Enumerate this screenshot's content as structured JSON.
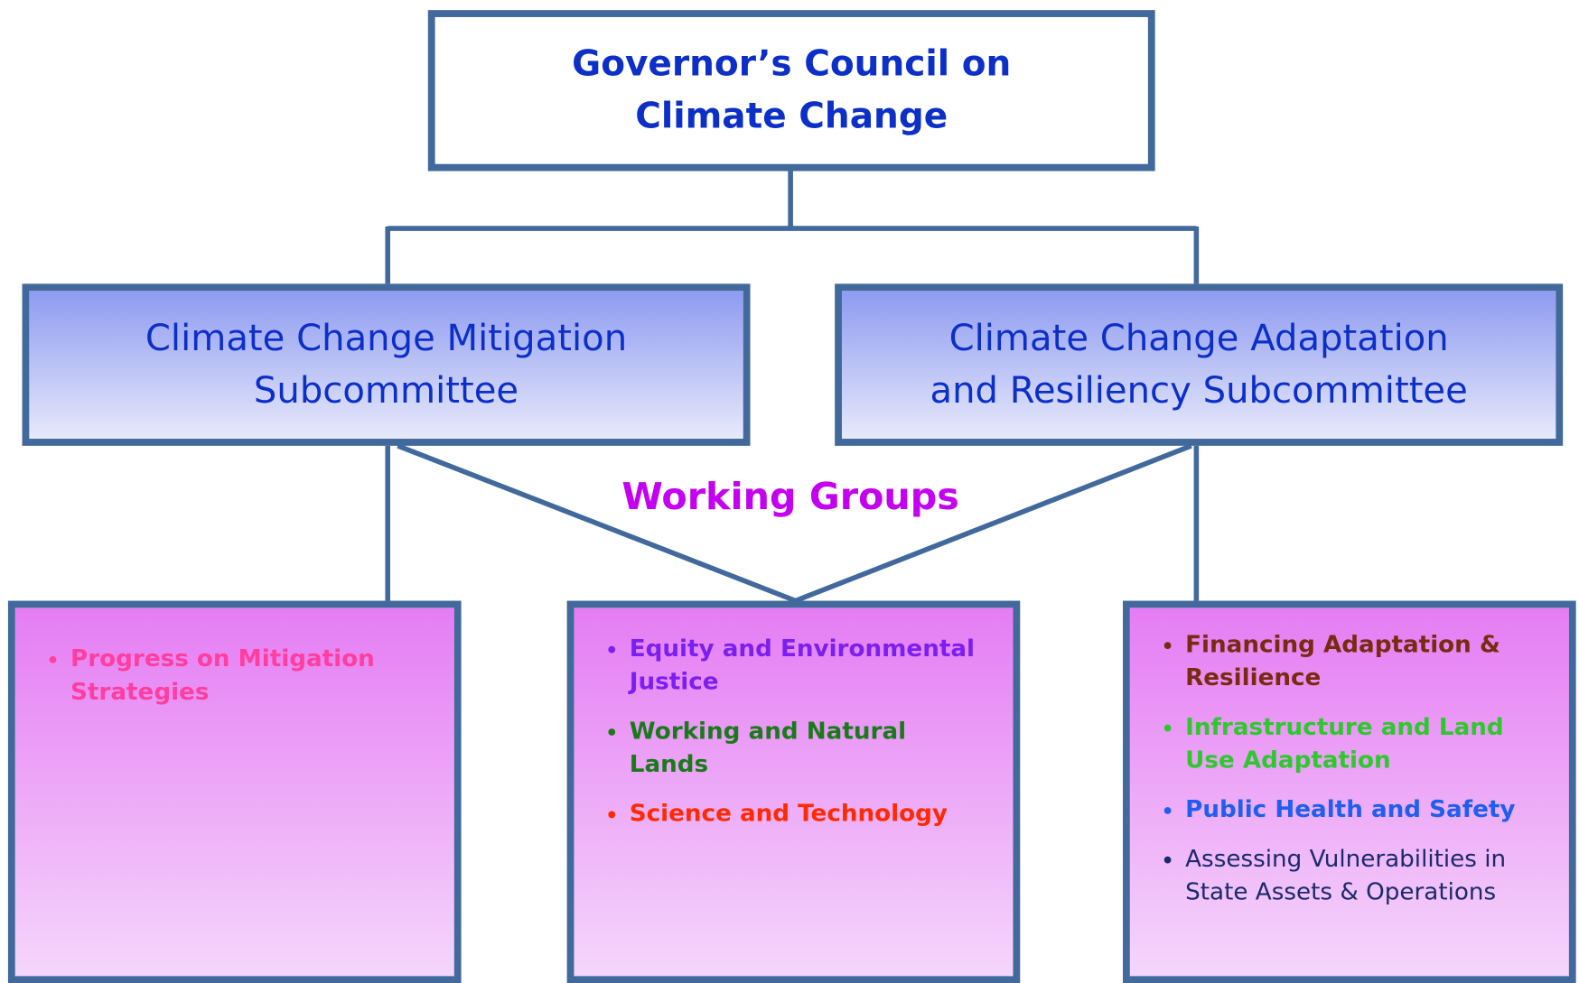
{
  "top": {
    "lines": [
      "Governor’s Council on",
      "Climate Change"
    ]
  },
  "subcommittees": [
    {
      "lines": [
        "Climate Change Mitigation",
        "Subcommittee"
      ]
    },
    {
      "lines": [
        "Climate Change Adaptation",
        "and Resiliency Subcommittee"
      ]
    }
  ],
  "working_groups_label": "Working Groups",
  "groups": [
    {
      "items": [
        {
          "lines": [
            "Progress on Mitigation",
            "Strategies"
          ],
          "color": "#ff3f9f",
          "bold": true
        }
      ]
    },
    {
      "items": [
        {
          "lines": [
            "Equity and Environmental",
            "Justice"
          ],
          "color": "#7a1ff0",
          "bold": true
        },
        {
          "lines": [
            "Working and Natural",
            "Lands"
          ],
          "color": "#1a7a1a",
          "bold": true
        },
        {
          "lines": [
            "Science and Technology"
          ],
          "color": "#ff2a00",
          "bold": true
        }
      ]
    },
    {
      "items": [
        {
          "lines": [
            "Financing Adaptation &",
            "Resilience"
          ],
          "color": "#7a2a10",
          "bold": true
        },
        {
          "lines": [
            "Infrastructure and Land",
            "Use Adaptation"
          ],
          "color": "#2ec82e",
          "bold": true
        },
        {
          "lines": [
            "Public Health and Safety"
          ],
          "color": "#1f5ff0",
          "bold": true
        },
        {
          "lines": [
            "Assessing Vulnerabilities in",
            "State Assets & Operations"
          ],
          "color": "#1a2a6a",
          "bold": false
        }
      ]
    }
  ]
}
